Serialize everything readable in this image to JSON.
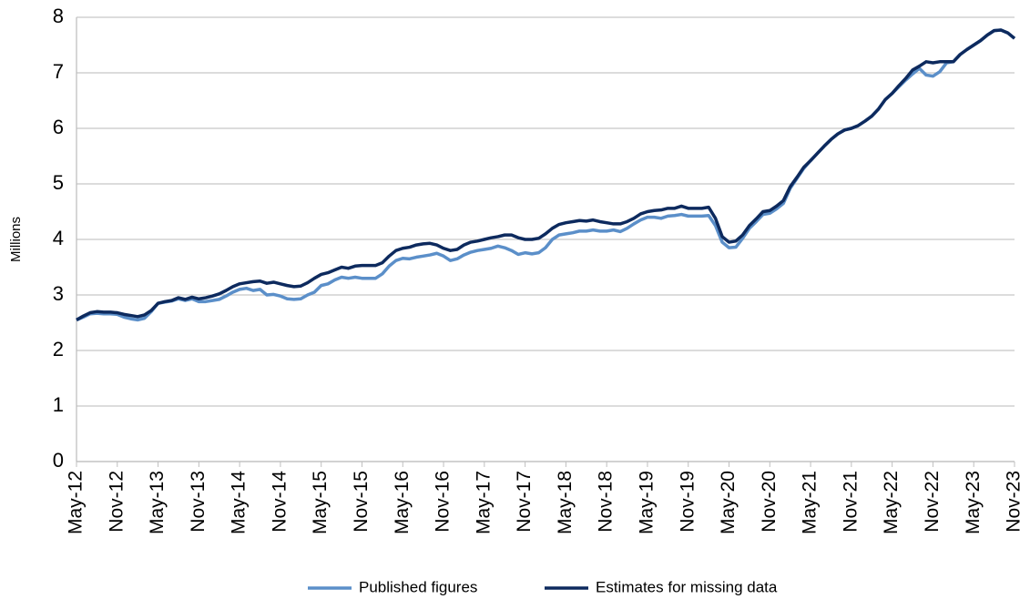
{
  "chart_data": {
    "type": "line",
    "y_label": "Millions",
    "categories": [
      "May-12",
      null,
      null,
      null,
      null,
      null,
      "Nov-12",
      null,
      null,
      null,
      null,
      null,
      "May-13",
      null,
      null,
      null,
      null,
      null,
      "Nov-13",
      null,
      null,
      null,
      null,
      null,
      "May-14",
      null,
      null,
      null,
      null,
      null,
      "Nov-14",
      null,
      null,
      null,
      null,
      null,
      "May-15",
      null,
      null,
      null,
      null,
      null,
      "Nov-15",
      null,
      null,
      null,
      null,
      null,
      "May-16",
      null,
      null,
      null,
      null,
      null,
      "Nov-16",
      null,
      null,
      null,
      null,
      null,
      "May-17",
      null,
      null,
      null,
      null,
      null,
      "Nov-17",
      null,
      null,
      null,
      null,
      null,
      "May-18",
      null,
      null,
      null,
      null,
      null,
      "Nov-18",
      null,
      null,
      null,
      null,
      null,
      "May-19",
      null,
      null,
      null,
      null,
      null,
      "Nov-19",
      null,
      null,
      null,
      null,
      null,
      "May-20",
      null,
      null,
      null,
      null,
      null,
      "Nov-20",
      null,
      null,
      null,
      null,
      null,
      "May-21",
      null,
      null,
      null,
      null,
      null,
      "Nov-21",
      null,
      null,
      null,
      null,
      null,
      "May-22",
      null,
      null,
      null,
      null,
      null,
      "Nov-22",
      null,
      null,
      null,
      null,
      null,
      "May-23",
      null,
      null,
      null,
      null,
      null,
      "Nov-23"
    ],
    "series": [
      {
        "name": "Published figures",
        "color": "#5b8fc9",
        "values": [
          2.55,
          2.6,
          2.66,
          2.67,
          2.66,
          2.66,
          2.65,
          2.6,
          2.57,
          2.55,
          2.58,
          2.7,
          2.85,
          2.87,
          2.89,
          2.93,
          2.9,
          2.93,
          2.88,
          2.88,
          2.9,
          2.92,
          2.98,
          3.05,
          3.1,
          3.12,
          3.08,
          3.1,
          3.0,
          3.01,
          2.98,
          2.93,
          2.92,
          2.93,
          3.0,
          3.05,
          3.17,
          3.2,
          3.27,
          3.32,
          3.3,
          3.32,
          3.3,
          3.3,
          3.3,
          3.38,
          3.52,
          3.62,
          3.66,
          3.65,
          3.68,
          3.7,
          3.72,
          3.75,
          3.7,
          3.62,
          3.65,
          3.72,
          3.77,
          3.8,
          3.82,
          3.84,
          3.88,
          3.85,
          3.8,
          3.73,
          3.76,
          3.74,
          3.76,
          3.85,
          4.0,
          4.08,
          4.1,
          4.12,
          4.15,
          4.15,
          4.17,
          4.15,
          4.15,
          4.17,
          4.14,
          4.2,
          4.28,
          4.35,
          4.4,
          4.4,
          4.38,
          4.42,
          4.43,
          4.45,
          4.42,
          4.42,
          4.42,
          4.43,
          4.25,
          3.95,
          3.85,
          3.86,
          4.02,
          4.2,
          4.32,
          4.45,
          4.47,
          4.55,
          4.65,
          4.92,
          5.1,
          5.28,
          5.42,
          5.55,
          5.68,
          5.8,
          5.9,
          5.97,
          6.0,
          6.05,
          6.13,
          6.22,
          6.35,
          6.52,
          6.63,
          6.75,
          6.87,
          6.98,
          7.08,
          6.96,
          6.94,
          7.02,
          7.18,
          7.2,
          7.33,
          7.42,
          7.5,
          7.58,
          7.68,
          7.76,
          7.77,
          7.72,
          7.62
        ]
      },
      {
        "name": "Estimates for missing data",
        "color": "#0d2a5e",
        "values": [
          2.55,
          2.62,
          2.68,
          2.7,
          2.69,
          2.69,
          2.68,
          2.65,
          2.63,
          2.61,
          2.64,
          2.72,
          2.85,
          2.88,
          2.9,
          2.95,
          2.92,
          2.96,
          2.93,
          2.95,
          2.98,
          3.02,
          3.08,
          3.15,
          3.2,
          3.22,
          3.24,
          3.25,
          3.21,
          3.23,
          3.2,
          3.17,
          3.15,
          3.16,
          3.22,
          3.3,
          3.37,
          3.4,
          3.45,
          3.5,
          3.48,
          3.52,
          3.53,
          3.53,
          3.53,
          3.58,
          3.7,
          3.8,
          3.84,
          3.86,
          3.9,
          3.92,
          3.93,
          3.9,
          3.84,
          3.8,
          3.82,
          3.9,
          3.95,
          3.97,
          4.0,
          4.03,
          4.05,
          4.08,
          4.08,
          4.03,
          4.0,
          4.0,
          4.02,
          4.1,
          4.2,
          4.27,
          4.3,
          4.32,
          4.34,
          4.33,
          4.35,
          4.32,
          4.3,
          4.28,
          4.28,
          4.32,
          4.38,
          4.46,
          4.5,
          4.52,
          4.53,
          4.56,
          4.56,
          4.6,
          4.56,
          4.56,
          4.56,
          4.58,
          4.38,
          4.05,
          3.95,
          3.97,
          4.08,
          4.25,
          4.37,
          4.5,
          4.52,
          4.6,
          4.7,
          4.95,
          5.12,
          5.3,
          5.42,
          5.55,
          5.68,
          5.8,
          5.9,
          5.97,
          6.0,
          6.05,
          6.13,
          6.22,
          6.35,
          6.52,
          6.63,
          6.77,
          6.9,
          7.05,
          7.12,
          7.2,
          7.18,
          7.2,
          7.2,
          7.2,
          7.33,
          7.42,
          7.5,
          7.58,
          7.68,
          7.76,
          7.77,
          7.72,
          7.62
        ]
      }
    ],
    "ylim": [
      0,
      8
    ],
    "yticks": [
      0,
      1,
      2,
      3,
      4,
      5,
      6,
      7,
      8
    ],
    "grid": true,
    "legend": "bottom"
  }
}
